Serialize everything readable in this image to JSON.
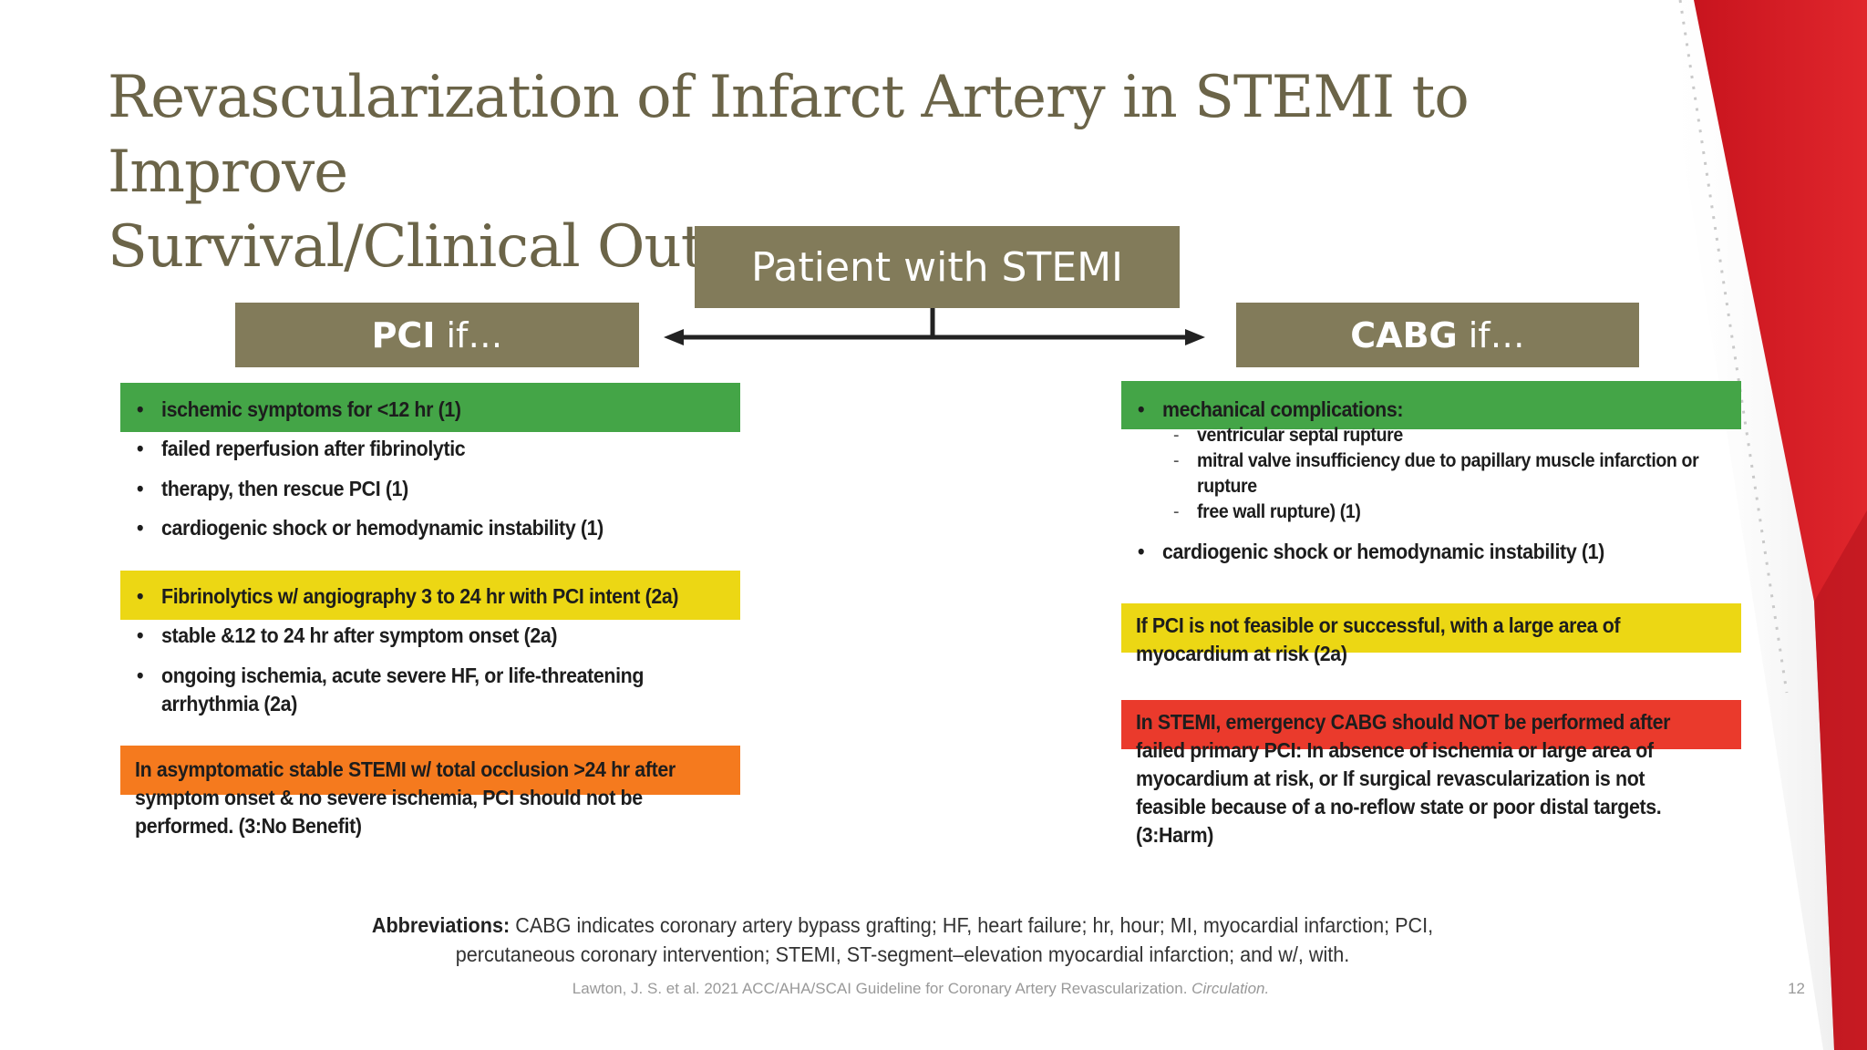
{
  "title_lines": [
    "Revascularization of Infarct Artery in STEMI to Improve",
    "Survival/Clinical Outcomes"
  ],
  "root_box": "Patient with STEMI",
  "pci_box": {
    "bold": "PCI",
    "rest": "if…"
  },
  "cabg_box": {
    "bold": "CABG",
    "rest": "if…"
  },
  "pci": {
    "class1": [
      "ischemic symptoms for <12 hr (1)",
      "failed reperfusion after fibrinolytic",
      "therapy, then rescue PCI (1)",
      "cardiogenic shock or hemodynamic instability (1)"
    ],
    "class2a": [
      "Fibrinolytics w/ angiography 3 to 24 hr with PCI intent (2a)",
      "stable &12 to 24 hr after symptom onset (2a)",
      "ongoing ischemia, acute severe HF, or life-threatening",
      "arrhythmia (2a)"
    ],
    "class3": [
      "In asymptomatic stable STEMI w/ total occlusion >24 hr after",
      "symptom onset & no severe ischemia, PCI should not be",
      "performed.  (3:No Benefit)"
    ]
  },
  "cabg": {
    "class1": {
      "heading": "mechanical complications:",
      "subitems": [
        "ventricular septal rupture",
        "mitral valve insufficiency due to papillary muscle infarction or",
        "rupture",
        "free wall rupture) (1)"
      ],
      "item2": "cardiogenic shock or hemodynamic instability (1)"
    },
    "class2a": [
      "If PCI is not feasible or successful, with a large area of",
      "myocardium at risk (2a)"
    ],
    "class3": [
      "In STEMI, emergency CABG should NOT be performed after",
      "failed primary PCI: In absence of ischemia or large area of",
      "myocardium at risk, or If surgical revascularization is not",
      "feasible because of a no-reflow state or poor distal targets.",
      "(3:Harm)"
    ]
  },
  "abbreviations": {
    "label": "Abbreviations:",
    "line1": "CABG indicates coronary artery bypass grafting; HF, heart failure; hr, hour; MI, myocardial infarction; PCI,",
    "line2": "percutaneous coronary intervention; STEMI, ST-segment–elevation myocardial infarction; and w/, with."
  },
  "citation": {
    "text": "Lawton, J. S. et al. 2021 ACC/AHA/SCAI Guideline for Coronary Artery Revascularization.",
    "journal": "Circulation."
  },
  "page_number": "12",
  "colors": {
    "title": "#6b6448",
    "box": "#827b5a",
    "green": "#44a547",
    "yellow": "#ecd714",
    "orange": "#f57a1e",
    "red": "#ea3a2c",
    "accent_red": "#d42027"
  }
}
